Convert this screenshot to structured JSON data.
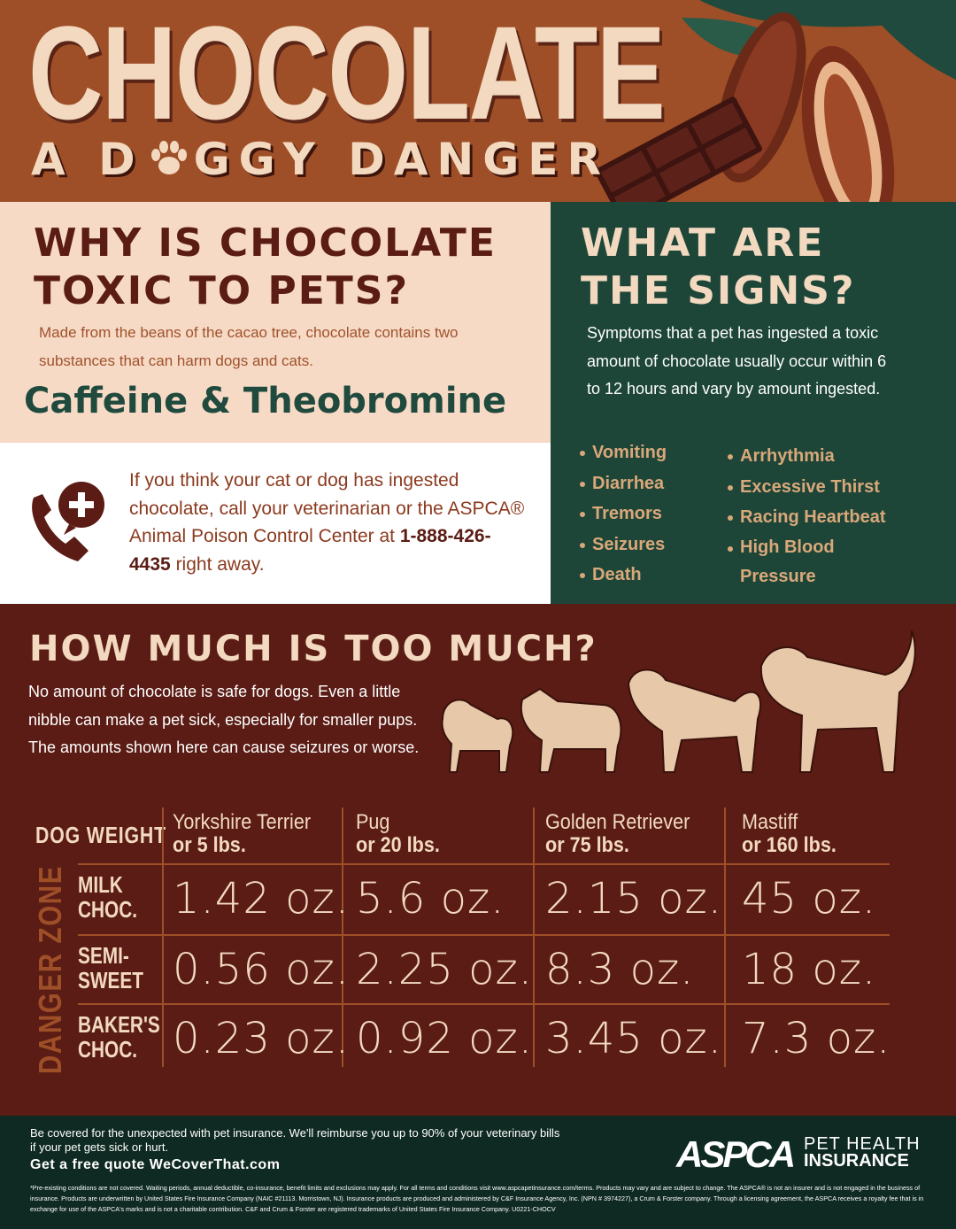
{
  "header": {
    "title": "CHOCOLATE",
    "subtitle_start": "A D",
    "subtitle_end": "GGY DANGER"
  },
  "why": {
    "heading_line1": "WHY IS CHOCOLATE",
    "heading_line2": "TOXIC TO PETS?",
    "body": "Made from the beans of the cacao tree, chocolate contains two substances that can harm dogs and cats.",
    "highlight": "Caffeine & Theobromine"
  },
  "call": {
    "text": "If you think your cat or dog has ingested chocolate, call your veterinarian or the ASPCA® Animal Poison Control Center at",
    "phone": "1-888-426-4435",
    "text_end": "right away."
  },
  "signs": {
    "heading_line1": "WHAT ARE",
    "heading_line2": "THE SIGNS?",
    "body": "Symptoms that a pet has ingested a toxic amount of chocolate usually occur within 6 to 12 hours and vary by amount ingested.",
    "list_left": [
      "Vomiting",
      "Diarrhea",
      "Tremors",
      "Seizures",
      "Death"
    ],
    "list_right": [
      "Arrhythmia",
      "Excessive Thirst",
      "Racing Heartbeat",
      "High Blood Pressure"
    ]
  },
  "how_much": {
    "heading": "HOW MUCH IS TOO MUCH?",
    "body": "No amount of chocolate is safe for dogs. Even a little nibble can make a pet sick, especially for smaller pups. The amounts shown here can cause seizures or worse."
  },
  "table": {
    "corner": "DOG WEIGHT",
    "side_label": "DANGER ZONE",
    "columns": [
      {
        "breed": "Yorkshire Terrier",
        "weight": "or 5 lbs."
      },
      {
        "breed": "Pug",
        "weight": "or 20 lbs."
      },
      {
        "breed": "Golden Retriever",
        "weight": "or 75 lbs."
      },
      {
        "breed": "Mastiff",
        "weight": "or 160 lbs."
      }
    ],
    "rows": [
      {
        "label_line1": "MILK",
        "label_line2": "CHOC.",
        "cells": [
          "1.42 oz.",
          "5.6 oz.",
          "2.15 oz.",
          "45 oz."
        ]
      },
      {
        "label_line1": "SEMI-",
        "label_line2": "SWEET",
        "cells": [
          "0.56 oz.",
          "2.25 oz.",
          "8.3 oz.",
          "18 oz."
        ]
      },
      {
        "label_line1": "BAKER'S",
        "label_line2": "CHOC.",
        "cells": [
          "0.23 oz.",
          "0.92 oz.",
          "3.45 oz.",
          "7.3 oz."
        ]
      }
    ]
  },
  "footer": {
    "text": "Be covered for the unexpected with pet insurance. We'll reimburse you up to 90% of your veterinary bills if your pet gets sick or hurt.",
    "cta": "Get a free quote WeCoverThat.com",
    "logo": "ASPCA",
    "logo_line1": "PET HEALTH",
    "logo_line2": "INSURANCE",
    "fine_print": "*Pre-existing conditions are not covered. Waiting periods, annual deductible, co-insurance, benefit limits and exclusions may apply. For all terms and conditions visit www.aspcapetinsurance.com/terms. Products may vary and are subject to change. The ASPCA® is not an insurer and is not engaged in the business of insurance. Products are underwritten by United States Fire Insurance Company (NAIC #21113. Morristown, NJ). Insurance products are produced and administered by C&F Insurance Agency, Inc. (NPN # 3974227), a Crum & Forster company. Through a licensing agreement, the ASPCA receives a royalty fee that is in exchange for use of the ASPCA's marks and is not a charitable contribution. C&F and Crum & Forster are registered trademarks of United States Fire Insurance Company. U0221-CHOCV"
  }
}
